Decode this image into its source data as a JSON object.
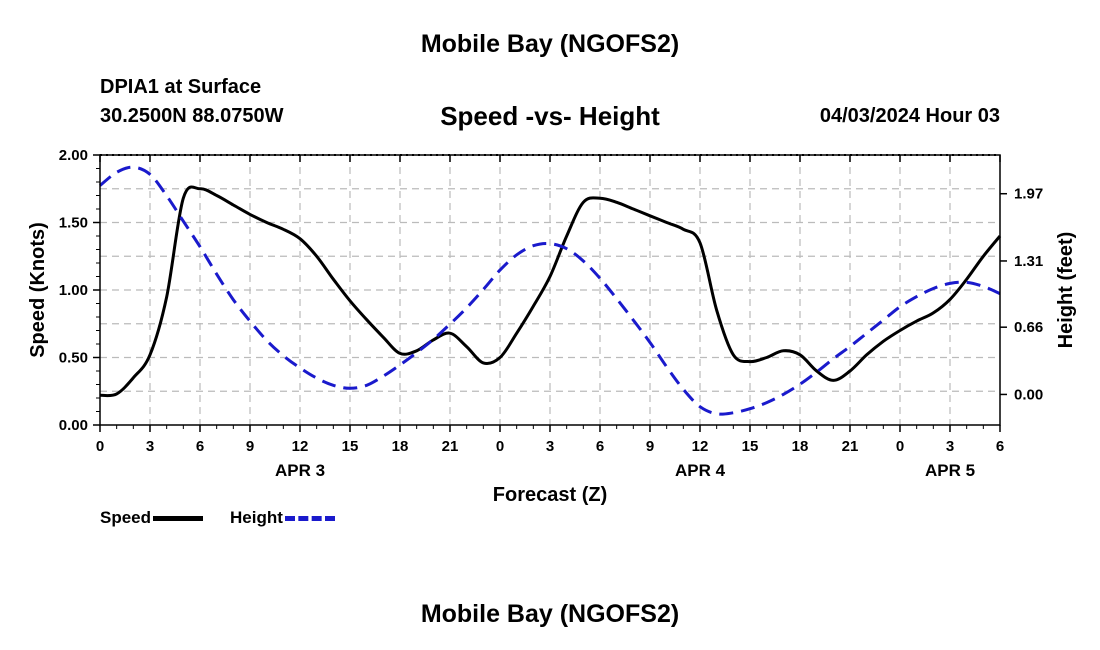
{
  "header": {
    "title": "Mobile Bay (NGOFS2)",
    "station": "DPIA1 at Surface",
    "coords": "30.2500N  88.0750W",
    "subtitle": "Speed -vs- Height",
    "datetime": "04/03/2024 Hour 03"
  },
  "footer": {
    "title": "Mobile Bay (NGOFS2)"
  },
  "legend": {
    "speed_label": "Speed",
    "height_label": "Height"
  },
  "colors": {
    "speed": "#000000",
    "height": "#1a1acc",
    "grid": "#bbbbbb"
  },
  "chart_data": {
    "type": "line",
    "xlabel": "Forecast (Z)",
    "ylabel": "Speed (Knots)",
    "y2label": "Height (feet)",
    "x_range_hours": [
      0,
      54
    ],
    "x_tick_labels": [
      "0",
      "3",
      "6",
      "9",
      "12",
      "15",
      "18",
      "21",
      "0",
      "3",
      "6",
      "9",
      "12",
      "15",
      "18",
      "21",
      "0",
      "3",
      "6"
    ],
    "day_labels": [
      {
        "label": "APR 3",
        "at_hour": 12
      },
      {
        "label": "APR 4",
        "at_hour": 36
      },
      {
        "label": "APR 5",
        "at_hour": 51
      }
    ],
    "ylim": [
      0,
      2
    ],
    "y_ticks": [
      "0.00",
      "0.50",
      "1.00",
      "1.50",
      "2.00"
    ],
    "y2lim": [
      -0.3,
      2.35
    ],
    "y2_ticks": [
      "0.00",
      "0.66",
      "1.31",
      "1.97"
    ],
    "grid": true,
    "series": [
      {
        "name": "Speed",
        "axis": "left",
        "style": "solid",
        "x": [
          0,
          1,
          2,
          3,
          4,
          5,
          6,
          7,
          8,
          9,
          10,
          11,
          12,
          13,
          14,
          15,
          16,
          17,
          18,
          19,
          20,
          21,
          22,
          23,
          24,
          25,
          26,
          27,
          28,
          29,
          30,
          31,
          32,
          33,
          34,
          35,
          36,
          37,
          38,
          39,
          40,
          41,
          42,
          43,
          44,
          45,
          46,
          47,
          48,
          49,
          50,
          51,
          52,
          53,
          54
        ],
        "y": [
          0.22,
          0.23,
          0.35,
          0.52,
          0.95,
          1.68,
          1.75,
          1.7,
          1.63,
          1.56,
          1.5,
          1.45,
          1.38,
          1.25,
          1.08,
          0.92,
          0.78,
          0.65,
          0.53,
          0.55,
          0.63,
          0.68,
          0.58,
          0.46,
          0.5,
          0.68,
          0.88,
          1.1,
          1.4,
          1.65,
          1.68,
          1.65,
          1.6,
          1.55,
          1.5,
          1.45,
          1.35,
          0.85,
          0.52,
          0.47,
          0.5,
          0.55,
          0.52,
          0.4,
          0.33,
          0.4,
          0.52,
          0.62,
          0.7,
          0.77,
          0.83,
          0.93,
          1.08,
          1.25,
          1.4
        ]
      },
      {
        "name": "Height",
        "axis": "right",
        "style": "dashed",
        "x": [
          0,
          1,
          2,
          3,
          4,
          5,
          6,
          7,
          8,
          9,
          10,
          11,
          12,
          13,
          14,
          15,
          16,
          17,
          18,
          19,
          20,
          21,
          22,
          23,
          24,
          25,
          26,
          27,
          28,
          29,
          30,
          31,
          32,
          33,
          34,
          35,
          36,
          37,
          38,
          39,
          40,
          41,
          42,
          43,
          44,
          45,
          46,
          47,
          48,
          49,
          50,
          51,
          52,
          53,
          54
        ],
        "y": [
          2.05,
          2.18,
          2.23,
          2.16,
          1.95,
          1.7,
          1.45,
          1.18,
          0.93,
          0.72,
          0.53,
          0.38,
          0.26,
          0.16,
          0.09,
          0.06,
          0.09,
          0.18,
          0.29,
          0.41,
          0.54,
          0.69,
          0.85,
          1.03,
          1.22,
          1.37,
          1.46,
          1.48,
          1.43,
          1.31,
          1.14,
          0.94,
          0.73,
          0.51,
          0.27,
          0.05,
          -0.12,
          -0.19,
          -0.18,
          -0.14,
          -0.08,
          0.0,
          0.1,
          0.22,
          0.35,
          0.47,
          0.6,
          0.73,
          0.86,
          0.96,
          1.04,
          1.09,
          1.1,
          1.06,
          0.99
        ]
      }
    ]
  }
}
